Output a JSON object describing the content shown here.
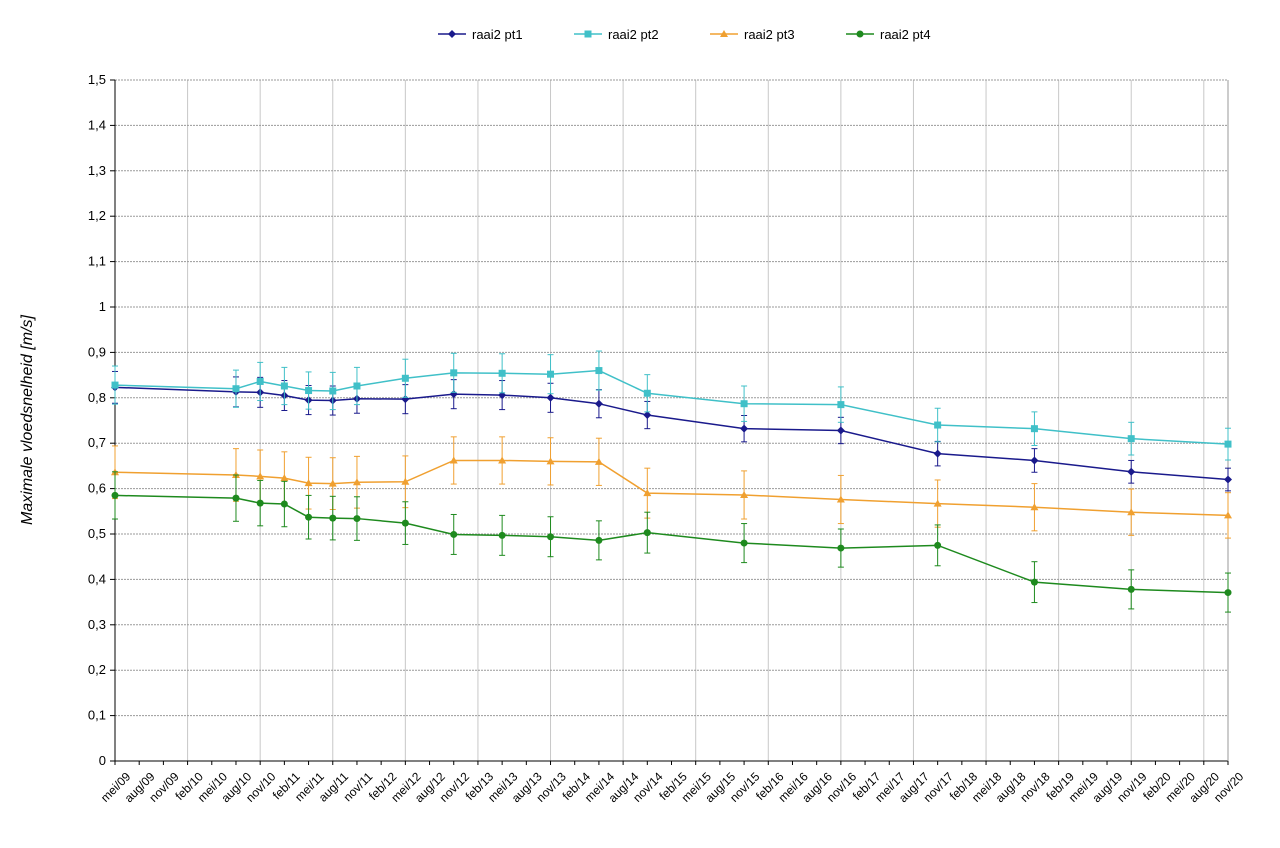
{
  "chart_data": {
    "type": "line",
    "title": "",
    "xlabel": "",
    "ylabel": "Maximale vloedsnelheid [m/s]",
    "ylim": [
      0,
      1.5
    ],
    "yticks": [
      "0",
      "0,1",
      "0,2",
      "0,3",
      "0,4",
      "0,5",
      "0,6",
      "0,7",
      "0,8",
      "0,9",
      "1",
      "1,1",
      "1,2",
      "1,3",
      "1,4",
      "1,5"
    ],
    "grid": true,
    "legend_position": "top",
    "error_bars": true,
    "categories": [
      "mei/09",
      "aug/09",
      "nov/09",
      "feb/10",
      "mei/10",
      "aug/10",
      "nov/10",
      "feb/11",
      "mei/11",
      "aug/11",
      "nov/11",
      "feb/12",
      "mei/12",
      "aug/12",
      "nov/12",
      "feb/13",
      "mei/13",
      "aug/13",
      "nov/13",
      "feb/14",
      "mei/14",
      "aug/14",
      "nov/14",
      "feb/15",
      "mei/15",
      "aug/15",
      "nov/15",
      "feb/16",
      "mei/16",
      "aug/16",
      "nov/16",
      "feb/17",
      "mei/17",
      "aug/17",
      "nov/17",
      "feb/18",
      "mei/18",
      "aug/18",
      "nov/18",
      "feb/19",
      "mei/19",
      "aug/19",
      "nov/19",
      "feb/20",
      "mei/20",
      "aug/20",
      "nov/20"
    ],
    "series": [
      {
        "name": "raai2 pt1",
        "color": "#1a1a8c",
        "marker": "diamond",
        "points": [
          {
            "x": 0,
            "y": 0.823,
            "err": 0.035
          },
          {
            "x": 5,
            "y": 0.813,
            "err": 0.033
          },
          {
            "x": 6,
            "y": 0.812,
            "err": 0.033
          },
          {
            "x": 7,
            "y": 0.805,
            "err": 0.033
          },
          {
            "x": 8,
            "y": 0.795,
            "err": 0.032
          },
          {
            "x": 9,
            "y": 0.794,
            "err": 0.032
          },
          {
            "x": 10,
            "y": 0.798,
            "err": 0.032
          },
          {
            "x": 12,
            "y": 0.797,
            "err": 0.032
          },
          {
            "x": 14,
            "y": 0.808,
            "err": 0.032
          },
          {
            "x": 16,
            "y": 0.806,
            "err": 0.032
          },
          {
            "x": 18,
            "y": 0.8,
            "err": 0.032
          },
          {
            "x": 20,
            "y": 0.787,
            "err": 0.031
          },
          {
            "x": 22,
            "y": 0.762,
            "err": 0.03
          },
          {
            "x": 26,
            "y": 0.732,
            "err": 0.029
          },
          {
            "x": 30,
            "y": 0.728,
            "err": 0.029
          },
          {
            "x": 34,
            "y": 0.677,
            "err": 0.027
          },
          {
            "x": 38,
            "y": 0.662,
            "err": 0.026
          },
          {
            "x": 42,
            "y": 0.637,
            "err": 0.025
          },
          {
            "x": 46,
            "y": 0.62,
            "err": 0.025
          }
        ]
      },
      {
        "name": "raai2 pt2",
        "color": "#40c0c8",
        "marker": "square",
        "points": [
          {
            "x": 0,
            "y": 0.828,
            "err": 0.042
          },
          {
            "x": 5,
            "y": 0.82,
            "err": 0.041
          },
          {
            "x": 6,
            "y": 0.836,
            "err": 0.042
          },
          {
            "x": 7,
            "y": 0.826,
            "err": 0.041
          },
          {
            "x": 8,
            "y": 0.816,
            "err": 0.041
          },
          {
            "x": 9,
            "y": 0.815,
            "err": 0.041
          },
          {
            "x": 10,
            "y": 0.826,
            "err": 0.041
          },
          {
            "x": 12,
            "y": 0.843,
            "err": 0.042
          },
          {
            "x": 14,
            "y": 0.855,
            "err": 0.043
          },
          {
            "x": 16,
            "y": 0.854,
            "err": 0.043
          },
          {
            "x": 18,
            "y": 0.852,
            "err": 0.043
          },
          {
            "x": 20,
            "y": 0.86,
            "err": 0.043
          },
          {
            "x": 22,
            "y": 0.81,
            "err": 0.041
          },
          {
            "x": 26,
            "y": 0.787,
            "err": 0.039
          },
          {
            "x": 30,
            "y": 0.785,
            "err": 0.039
          },
          {
            "x": 34,
            "y": 0.74,
            "err": 0.037
          },
          {
            "x": 38,
            "y": 0.732,
            "err": 0.037
          },
          {
            "x": 42,
            "y": 0.71,
            "err": 0.036
          },
          {
            "x": 46,
            "y": 0.698,
            "err": 0.035
          }
        ]
      },
      {
        "name": "raai2 pt3",
        "color": "#f0a030",
        "marker": "triangle",
        "points": [
          {
            "x": 0,
            "y": 0.636,
            "err": 0.058
          },
          {
            "x": 5,
            "y": 0.63,
            "err": 0.058
          },
          {
            "x": 6,
            "y": 0.627,
            "err": 0.058
          },
          {
            "x": 7,
            "y": 0.623,
            "err": 0.058
          },
          {
            "x": 8,
            "y": 0.612,
            "err": 0.057
          },
          {
            "x": 9,
            "y": 0.611,
            "err": 0.057
          },
          {
            "x": 10,
            "y": 0.614,
            "err": 0.057
          },
          {
            "x": 12,
            "y": 0.615,
            "err": 0.057
          },
          {
            "x": 14,
            "y": 0.662,
            "err": 0.052
          },
          {
            "x": 16,
            "y": 0.662,
            "err": 0.052
          },
          {
            "x": 18,
            "y": 0.66,
            "err": 0.052
          },
          {
            "x": 20,
            "y": 0.659,
            "err": 0.052
          },
          {
            "x": 22,
            "y": 0.59,
            "err": 0.055
          },
          {
            "x": 26,
            "y": 0.586,
            "err": 0.053
          },
          {
            "x": 30,
            "y": 0.576,
            "err": 0.053
          },
          {
            "x": 34,
            "y": 0.567,
            "err": 0.052
          },
          {
            "x": 38,
            "y": 0.559,
            "err": 0.052
          },
          {
            "x": 42,
            "y": 0.548,
            "err": 0.051
          },
          {
            "x": 46,
            "y": 0.541,
            "err": 0.05
          }
        ]
      },
      {
        "name": "raai2 pt4",
        "color": "#1e8a1e",
        "marker": "circle",
        "points": [
          {
            "x": 0,
            "y": 0.585,
            "err": 0.052
          },
          {
            "x": 5,
            "y": 0.579,
            "err": 0.051
          },
          {
            "x": 6,
            "y": 0.568,
            "err": 0.05
          },
          {
            "x": 7,
            "y": 0.566,
            "err": 0.05
          },
          {
            "x": 8,
            "y": 0.537,
            "err": 0.048
          },
          {
            "x": 9,
            "y": 0.535,
            "err": 0.048
          },
          {
            "x": 10,
            "y": 0.534,
            "err": 0.048
          },
          {
            "x": 12,
            "y": 0.524,
            "err": 0.047
          },
          {
            "x": 14,
            "y": 0.499,
            "err": 0.044
          },
          {
            "x": 16,
            "y": 0.497,
            "err": 0.044
          },
          {
            "x": 18,
            "y": 0.494,
            "err": 0.044
          },
          {
            "x": 20,
            "y": 0.486,
            "err": 0.043
          },
          {
            "x": 22,
            "y": 0.503,
            "err": 0.045
          },
          {
            "x": 26,
            "y": 0.48,
            "err": 0.043
          },
          {
            "x": 30,
            "y": 0.469,
            "err": 0.042
          },
          {
            "x": 34,
            "y": 0.475,
            "err": 0.045
          },
          {
            "x": 38,
            "y": 0.394,
            "err": 0.045
          },
          {
            "x": 42,
            "y": 0.378,
            "err": 0.043
          },
          {
            "x": 46,
            "y": 0.371,
            "err": 0.043
          }
        ]
      }
    ]
  }
}
